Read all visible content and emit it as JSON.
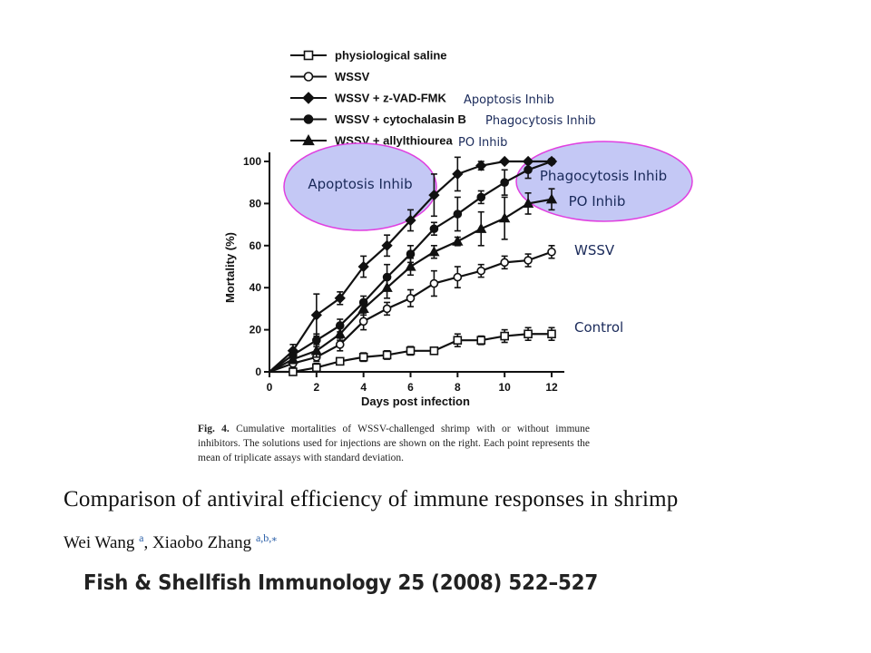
{
  "legend": [
    {
      "label": "physiological saline",
      "marker": "square-open"
    },
    {
      "label": "WSSV",
      "marker": "circle-open"
    },
    {
      "label": "WSSV + z-VAD-FMK",
      "marker": "diamond-filled"
    },
    {
      "label": "WSSV + cytochalasin B",
      "marker": "circle-filled"
    },
    {
      "label": "WSSV + allylthiourea",
      "marker": "triangle-filled"
    }
  ],
  "legend_annotations": [
    "Apoptosis Inhib",
    "Phagocytosis Inhib",
    "PO Inhib"
  ],
  "overlay": {
    "left_ellipse_label": "Apoptosis Inhib",
    "right_ellipse_label1": "Phagocytosis Inhib",
    "right_ellipse_label2": "PO Inhib",
    "wssv_label": "WSSV",
    "control_label": "Control",
    "ellipse_fill": "#c4c8f5",
    "ellipse_stroke": "#e040e0"
  },
  "chart_data": {
    "type": "line",
    "xlabel": "Days post infection",
    "ylabel": "Mortality (%)",
    "xlim": [
      0,
      12
    ],
    "ylim": [
      0,
      100
    ],
    "xticks": [
      0,
      2,
      4,
      6,
      8,
      10,
      12
    ],
    "yticks": [
      0,
      20,
      40,
      60,
      80,
      100
    ],
    "x": [
      0,
      1,
      2,
      3,
      4,
      5,
      6,
      7,
      8,
      9,
      10,
      11,
      12
    ],
    "series": [
      {
        "name": "physiological saline",
        "marker": "square-open",
        "values": [
          0,
          0,
          2,
          5,
          7,
          8,
          10,
          10,
          15,
          15,
          17,
          18,
          18
        ],
        "errors": [
          0,
          0,
          2,
          1,
          2,
          2,
          2,
          1,
          3,
          2,
          3,
          3,
          3
        ]
      },
      {
        "name": "WSSV",
        "marker": "circle-open",
        "values": [
          0,
          4,
          7,
          13,
          24,
          30,
          35,
          42,
          45,
          48,
          52,
          53,
          57
        ],
        "errors": [
          0,
          2,
          2,
          3,
          4,
          3,
          4,
          6,
          5,
          3,
          3,
          3,
          3
        ]
      },
      {
        "name": "WSSV + z-VAD-FMK",
        "marker": "diamond-filled",
        "values": [
          0,
          10,
          27,
          35,
          50,
          60,
          72,
          84,
          94,
          98,
          100,
          100,
          100
        ],
        "errors": [
          0,
          3,
          10,
          3,
          5,
          5,
          5,
          10,
          8,
          2,
          0,
          0,
          0
        ]
      },
      {
        "name": "WSSV + cytochalasin B",
        "marker": "circle-filled",
        "values": [
          0,
          8,
          15,
          22,
          33,
          45,
          56,
          68,
          75,
          83,
          90,
          96,
          100
        ],
        "errors": [
          0,
          2,
          3,
          3,
          3,
          6,
          4,
          3,
          8,
          3,
          6,
          4,
          0
        ]
      },
      {
        "name": "WSSV + allylthiourea",
        "marker": "triangle-filled",
        "values": [
          0,
          6,
          10,
          18,
          30,
          40,
          50,
          57,
          62,
          68,
          73,
          80,
          82
        ],
        "errors": [
          0,
          2,
          3,
          3,
          3,
          5,
          4,
          3,
          2,
          8,
          10,
          5,
          5
        ]
      }
    ]
  },
  "caption": {
    "figno": "Fig. 4.",
    "text": "Cumulative mortalities of WSSV-challenged shrimp with or without immune inhibitors. The solutions used for injections are shown on the right. Each point represents the mean of triplicate assays with standard deviation."
  },
  "paper": {
    "title": "Comparison of antiviral efficiency of immune responses in shrimp",
    "author1": "Wei Wang",
    "author1_sup": "a",
    "sep": ", ",
    "author2": "Xiaobo Zhang",
    "author2_sup": "a,b,⁎",
    "journal": "Fish & Shellfish Immunology 25 (2008) 522–527"
  }
}
